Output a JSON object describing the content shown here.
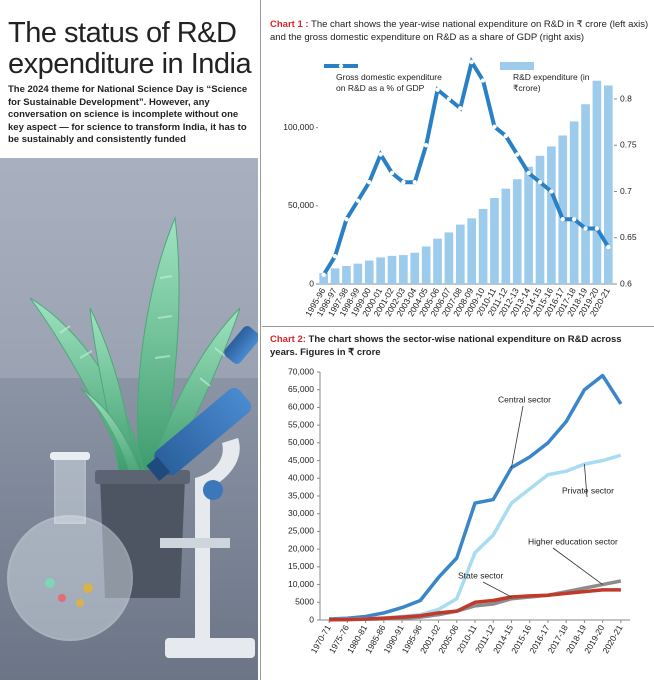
{
  "header": {
    "title": "The status of R&D expenditure in India",
    "intro": "The 2024 theme for National Science Day is “Science for Sustainable Development”. However, any conversation on science is incomplete without one key aspect — for science to transform India, it has to be sustainably and consistently funded"
  },
  "chart_data": [
    {
      "type": "bar",
      "label": "Chart 1 :",
      "title": "The chart shows the year-wise national expenditure on R&D in ₹ crore (left axis) and the gross domestic expenditure on R&D as a share of GDP (right axis)",
      "categories": [
        "1995-96",
        "1996-97",
        "1997-98",
        "1998-99",
        "1999-00",
        "2000-01",
        "2001-02",
        "2002-03",
        "2003-04",
        "2004-05",
        "2005-06",
        "2006-07",
        "2007-08",
        "2008-09",
        "2009-10",
        "2010-11",
        "2011-12",
        "2012-13",
        "2013-14",
        "2014-15",
        "2015-16",
        "2016-17",
        "2017-18",
        "2018-19",
        "2019-20",
        "2020-21"
      ],
      "series": [
        {
          "name": "Gross domestic expenditure on R&D as a % of GDP",
          "type": "line",
          "axis": "y2",
          "color": "#2a80c4",
          "values": [
            0.61,
            0.63,
            0.67,
            0.69,
            0.71,
            0.74,
            0.72,
            0.71,
            0.71,
            0.75,
            0.81,
            0.8,
            0.79,
            0.84,
            0.82,
            0.77,
            0.76,
            0.74,
            0.72,
            0.71,
            0.7,
            0.67,
            0.67,
            0.66,
            0.66,
            0.64
          ]
        },
        {
          "name": "R&D expenditure (in ₹crore)",
          "type": "bar",
          "axis": "y",
          "color": "#9dcbec",
          "values": [
            7000,
            10000,
            11500,
            13000,
            15000,
            17000,
            18000,
            18500,
            20000,
            24000,
            29000,
            33000,
            38000,
            42000,
            48000,
            55000,
            61000,
            67000,
            75000,
            82000,
            88000,
            95000,
            104000,
            115000,
            130000,
            127000
          ]
        }
      ],
      "ylim": [
        0,
        142000
      ],
      "yticks": [
        0,
        {
          "value": 50000,
          "label": "50,000"
        },
        {
          "value": 100000,
          "label": "100,000"
        }
      ],
      "y2lim": [
        0.6,
        0.84
      ],
      "y2ticks": [
        0.6,
        0.65,
        0.7,
        0.75,
        0.8
      ]
    },
    {
      "type": "line",
      "label": "Chart 2:",
      "title": "The chart shows the sector-wise national expenditure on R&D across years. Figures in ₹ crore",
      "categories": [
        "1970-71",
        "1975-76",
        "1980-81",
        "1985-86",
        "1990-91",
        "1995-96",
        "2001-02",
        "2005-06",
        "2010-11",
        "2011-12",
        "2014-15",
        "2015-16",
        "2016-17",
        "2017-18",
        "2018-19",
        "2019-20",
        "2020-21"
      ],
      "series": [
        {
          "name": "Central sector",
          "color": "#3a86c8",
          "values": [
            300,
            500,
            1000,
            2000,
            3500,
            5500,
            12000,
            17500,
            33000,
            34000,
            43000,
            46000,
            50000,
            56000,
            65000,
            69000,
            61000
          ]
        },
        {
          "name": "Private sector",
          "color": "#a7dcf3",
          "values": [
            100,
            200,
            300,
            600,
            1000,
            1500,
            3000,
            6000,
            19000,
            24000,
            33000,
            37000,
            41000,
            42000,
            44000,
            45000,
            46500
          ]
        },
        {
          "name": "Higher education sector",
          "color": "#8c8c8c",
          "values": [
            50,
            100,
            200,
            300,
            500,
            800,
            1500,
            2500,
            4000,
            4500,
            6000,
            6500,
            7000,
            8000,
            9000,
            10000,
            11000
          ]
        },
        {
          "name": "State sector",
          "color": "#c0392b",
          "values": [
            100,
            150,
            300,
            500,
            800,
            1200,
            2000,
            2500,
            5000,
            5500,
            6500,
            6800,
            7000,
            7500,
            8000,
            8500,
            8500
          ]
        }
      ],
      "ylim": [
        0,
        70000
      ],
      "yticks": [
        0,
        5000,
        {
          "value": 10000,
          "label": "10,000"
        },
        {
          "value": 15000,
          "label": "15,000"
        },
        {
          "value": 20000,
          "label": "20,000"
        },
        {
          "value": 25000,
          "label": "25,000"
        },
        {
          "value": 30000,
          "label": "30,000"
        },
        {
          "value": 35000,
          "label": "35,000"
        },
        {
          "value": 40000,
          "label": "40,000"
        },
        {
          "value": 45000,
          "label": "45,000"
        },
        {
          "value": 50000,
          "label": "50,000"
        },
        {
          "value": 55000,
          "label": "55,000"
        },
        {
          "value": 60000,
          "label": "60,000"
        },
        {
          "value": 65000,
          "label": "65,000"
        },
        {
          "value": 70000,
          "label": "70,000"
        }
      ]
    }
  ]
}
